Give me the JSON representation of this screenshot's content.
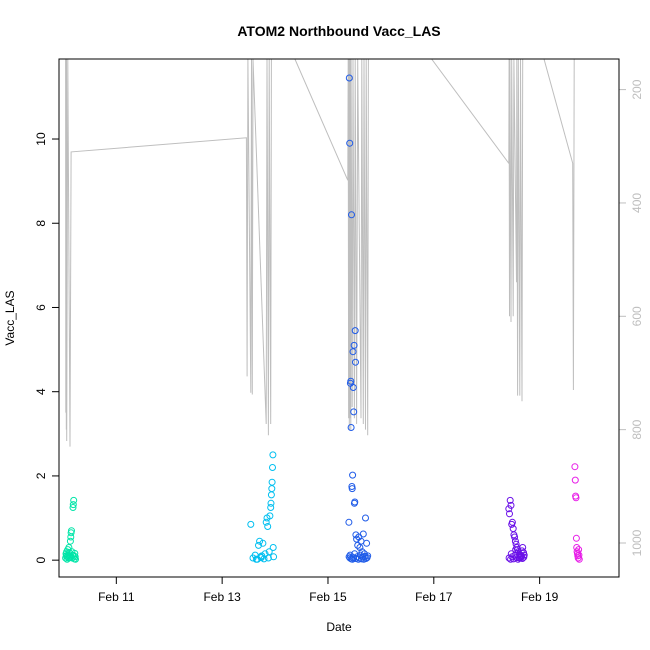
{
  "chart_data": {
    "type": "scatter",
    "title": "ATOM2 Northbound Vacc_LAS",
    "xlabel": "Date",
    "ylabel": "Vacc_LAS",
    "x_axis": {
      "type": "date",
      "range": [
        "2024-02-09T22:00",
        "2024-02-20T12:00"
      ],
      "ticks": [
        {
          "value": "2024-02-11T00:00",
          "label": "Feb 11"
        },
        {
          "value": "2024-02-13T00:00",
          "label": "Feb 13"
        },
        {
          "value": "2024-02-15T00:00",
          "label": "Feb 15"
        },
        {
          "value": "2024-02-17T00:00",
          "label": "Feb 17"
        },
        {
          "value": "2024-02-19T00:00",
          "label": "Feb 19"
        }
      ]
    },
    "y_axis": {
      "range": [
        -0.4,
        11.9
      ],
      "ticks": [
        0,
        2,
        4,
        6,
        8,
        10
      ]
    },
    "y2_axis": {
      "label": "",
      "reversed": true,
      "range": [
        1060,
        146
      ],
      "ticks": [
        200,
        400,
        600,
        800,
        1000
      ],
      "color": "#bebebe"
    },
    "grid": false,
    "legend": "none",
    "series": [
      {
        "color": "#00e5a8",
        "points": [
          [
            "2024-02-10T01:00",
            0.05
          ],
          [
            "2024-02-10T01:10",
            0.15
          ],
          [
            "2024-02-10T01:20",
            0.1
          ],
          [
            "2024-02-10T01:30",
            0.2
          ],
          [
            "2024-02-10T01:40",
            0.02
          ],
          [
            "2024-02-10T01:50",
            0.08
          ],
          [
            "2024-02-10T02:00",
            0.25
          ],
          [
            "2024-02-10T02:10",
            0.12
          ],
          [
            "2024-02-10T02:20",
            0.05
          ],
          [
            "2024-02-10T02:30",
            0.3
          ],
          [
            "2024-02-10T02:40",
            0.18
          ],
          [
            "2024-02-10T02:50",
            0.06
          ],
          [
            "2024-02-10T03:00",
            0.1
          ],
          [
            "2024-02-10T03:10",
            0.45
          ],
          [
            "2024-02-10T03:20",
            0.55
          ],
          [
            "2024-02-10T03:30",
            0.65
          ],
          [
            "2024-02-10T03:40",
            0.7
          ],
          [
            "2024-02-10T03:50",
            0.2
          ],
          [
            "2024-02-10T04:00",
            0.05
          ],
          [
            "2024-02-10T04:10",
            0.12
          ],
          [
            "2024-02-10T04:20",
            1.25
          ],
          [
            "2024-02-10T04:30",
            1.32
          ],
          [
            "2024-02-10T04:40",
            1.42
          ],
          [
            "2024-02-10T04:50",
            0.1
          ],
          [
            "2024-02-10T05:00",
            0.03
          ],
          [
            "2024-02-10T05:10",
            0.16
          ],
          [
            "2024-02-10T05:20",
            0.08
          ],
          [
            "2024-02-10T05:30",
            0.02
          ]
        ]
      },
      {
        "color": "#00bff0",
        "points": [
          [
            "2024-02-13T13:00",
            0.85
          ],
          [
            "2024-02-13T14:00",
            0.05
          ],
          [
            "2024-02-13T15:00",
            0.12
          ],
          [
            "2024-02-13T16:00",
            0.02
          ],
          [
            "2024-02-13T16:30",
            0.35
          ],
          [
            "2024-02-13T17:00",
            0.45
          ],
          [
            "2024-02-13T17:30",
            0.08
          ],
          [
            "2024-02-13T18:00",
            0.1
          ],
          [
            "2024-02-13T18:30",
            0.4
          ],
          [
            "2024-02-13T19:00",
            0.03
          ],
          [
            "2024-02-13T19:30",
            0.15
          ],
          [
            "2024-02-13T20:00",
            0.9
          ],
          [
            "2024-02-13T20:20",
            1.0
          ],
          [
            "2024-02-13T20:40",
            0.8
          ],
          [
            "2024-02-13T21:00",
            0.05
          ],
          [
            "2024-02-13T21:20",
            0.2
          ],
          [
            "2024-02-13T21:40",
            1.05
          ],
          [
            "2024-02-13T22:00",
            1.25
          ],
          [
            "2024-02-13T22:10",
            1.35
          ],
          [
            "2024-02-13T22:20",
            1.55
          ],
          [
            "2024-02-13T22:30",
            1.7
          ],
          [
            "2024-02-13T22:40",
            1.85
          ],
          [
            "2024-02-13T22:50",
            2.2
          ],
          [
            "2024-02-13T23:00",
            2.5
          ],
          [
            "2024-02-13T23:10",
            0.3
          ],
          [
            "2024-02-13T23:20",
            0.08
          ],
          [
            "2024-02-13T15:30",
            0.02
          ],
          [
            "2024-02-13T17:45",
            0.06
          ]
        ]
      },
      {
        "color": "#1f5be8",
        "points": [
          [
            "2024-02-15T09:30",
            0.9
          ],
          [
            "2024-02-15T09:40",
            11.45
          ],
          [
            "2024-02-15T09:50",
            9.9
          ],
          [
            "2024-02-15T10:00",
            0.05
          ],
          [
            "2024-02-15T10:10",
            4.2
          ],
          [
            "2024-02-15T10:20",
            4.25
          ],
          [
            "2024-02-15T10:30",
            3.15
          ],
          [
            "2024-02-15T10:40",
            8.2
          ],
          [
            "2024-02-15T10:50",
            1.75
          ],
          [
            "2024-02-15T11:00",
            1.7
          ],
          [
            "2024-02-15T11:10",
            2.02
          ],
          [
            "2024-02-15T11:20",
            4.95
          ],
          [
            "2024-02-15T11:30",
            4.1
          ],
          [
            "2024-02-15T11:40",
            3.52
          ],
          [
            "2024-02-15T11:50",
            5.1
          ],
          [
            "2024-02-15T12:00",
            1.35
          ],
          [
            "2024-02-15T12:10",
            1.38
          ],
          [
            "2024-02-15T12:20",
            5.45
          ],
          [
            "2024-02-15T12:30",
            4.7
          ],
          [
            "2024-02-15T12:40",
            0.6
          ],
          [
            "2024-02-15T13:00",
            0.5
          ],
          [
            "2024-02-15T13:30",
            0.35
          ],
          [
            "2024-02-15T14:00",
            0.55
          ],
          [
            "2024-02-15T14:30",
            0.3
          ],
          [
            "2024-02-15T15:00",
            0.45
          ],
          [
            "2024-02-15T15:30",
            0.2
          ],
          [
            "2024-02-15T16:00",
            0.62
          ],
          [
            "2024-02-15T16:30",
            0.15
          ],
          [
            "2024-02-15T17:00",
            1.0
          ],
          [
            "2024-02-15T17:30",
            0.4
          ],
          [
            "2024-02-15T18:00",
            0.1
          ],
          [
            "2024-02-15T09:35",
            0.08
          ],
          [
            "2024-02-15T10:05",
            0.12
          ],
          [
            "2024-02-15T10:35",
            0.03
          ],
          [
            "2024-02-15T11:05",
            0.02
          ],
          [
            "2024-02-15T11:35",
            0.06
          ],
          [
            "2024-02-15T12:05",
            0.15
          ],
          [
            "2024-02-15T12:35",
            0.04
          ],
          [
            "2024-02-15T13:15",
            0.08
          ],
          [
            "2024-02-15T13:45",
            0.02
          ],
          [
            "2024-02-15T14:15",
            0.05
          ],
          [
            "2024-02-15T14:45",
            0.12
          ],
          [
            "2024-02-15T15:15",
            0.03
          ],
          [
            "2024-02-15T15:45",
            0.07
          ],
          [
            "2024-02-15T16:15",
            0.02
          ],
          [
            "2024-02-15T16:45",
            0.09
          ],
          [
            "2024-02-15T17:15",
            0.04
          ],
          [
            "2024-02-15T17:45",
            0.06
          ]
        ]
      },
      {
        "color": "#6a10e8",
        "points": [
          [
            "2024-02-18T10:00",
            1.22
          ],
          [
            "2024-02-18T10:20",
            1.1
          ],
          [
            "2024-02-18T10:40",
            1.42
          ],
          [
            "2024-02-18T11:00",
            1.3
          ],
          [
            "2024-02-18T11:20",
            0.85
          ],
          [
            "2024-02-18T11:40",
            0.9
          ],
          [
            "2024-02-18T12:00",
            0.75
          ],
          [
            "2024-02-18T12:20",
            0.6
          ],
          [
            "2024-02-18T12:40",
            0.55
          ],
          [
            "2024-02-18T13:00",
            0.45
          ],
          [
            "2024-02-18T13:20",
            0.38
          ],
          [
            "2024-02-18T13:40",
            0.3
          ],
          [
            "2024-02-18T14:00",
            0.25
          ],
          [
            "2024-02-18T14:20",
            0.2
          ],
          [
            "2024-02-18T14:40",
            0.15
          ],
          [
            "2024-02-18T15:00",
            0.1
          ],
          [
            "2024-02-18T15:20",
            0.05
          ],
          [
            "2024-02-18T15:40",
            0.08
          ],
          [
            "2024-02-18T16:00",
            0.22
          ],
          [
            "2024-02-18T16:20",
            0.3
          ],
          [
            "2024-02-18T16:40",
            0.18
          ],
          [
            "2024-02-18T17:00",
            0.12
          ],
          [
            "2024-02-18T10:10",
            0.05
          ],
          [
            "2024-02-18T10:50",
            0.02
          ],
          [
            "2024-02-18T11:30",
            0.08
          ],
          [
            "2024-02-18T12:10",
            0.03
          ],
          [
            "2024-02-18T12:50",
            0.12
          ],
          [
            "2024-02-18T13:30",
            0.06
          ],
          [
            "2024-02-18T14:10",
            0.02
          ],
          [
            "2024-02-18T14:50",
            0.05
          ],
          [
            "2024-02-18T15:30",
            0.1
          ],
          [
            "2024-02-18T16:10",
            0.04
          ],
          [
            "2024-02-18T16:50",
            0.07
          ],
          [
            "2024-02-18T11:10",
            0.15
          ],
          [
            "2024-02-18T13:10",
            0.25
          ]
        ]
      },
      {
        "color": "#e81ee8",
        "points": [
          [
            "2024-02-19T16:00",
            2.22
          ],
          [
            "2024-02-19T16:10",
            1.9
          ],
          [
            "2024-02-19T16:20",
            1.52
          ],
          [
            "2024-02-19T16:30",
            1.48
          ],
          [
            "2024-02-19T16:40",
            0.52
          ],
          [
            "2024-02-19T16:50",
            0.3
          ],
          [
            "2024-02-19T17:00",
            0.2
          ],
          [
            "2024-02-19T17:10",
            0.15
          ],
          [
            "2024-02-19T17:20",
            0.1
          ],
          [
            "2024-02-19T17:30",
            0.05
          ],
          [
            "2024-02-19T17:40",
            0.25
          ],
          [
            "2024-02-19T17:50",
            0.12
          ],
          [
            "2024-02-19T18:00",
            0.02
          ]
        ]
      }
    ],
    "line2": {
      "color": "#bebebe",
      "y_axis": "y2",
      "points": [
        [
          "2024-02-10T01:00",
          146
        ],
        [
          "2024-02-10T01:06",
          770
        ],
        [
          "2024-02-10T01:12",
          146
        ],
        [
          "2024-02-10T01:18",
          800
        ],
        [
          "2024-02-10T01:24",
          146
        ],
        [
          "2024-02-10T01:30",
          820
        ],
        [
          "2024-02-10T02:00",
          146
        ],
        [
          "2024-02-10T03:00",
          830
        ],
        [
          "2024-02-10T03:30",
          310
        ],
        [
          "2024-02-13T11:00",
          285
        ],
        [
          "2024-02-13T11:20",
          706
        ],
        [
          "2024-02-13T11:40",
          146
        ],
        [
          "2024-02-13T13:00",
          735
        ],
        [
          "2024-02-13T13:20",
          146
        ],
        [
          "2024-02-13T13:40",
          738
        ],
        [
          "2024-02-13T14:00",
          146
        ],
        [
          "2024-02-13T20:00",
          790
        ],
        [
          "2024-02-13T20:20",
          146
        ],
        [
          "2024-02-13T21:00",
          810
        ],
        [
          "2024-02-13T21:20",
          146
        ],
        [
          "2024-02-13T22:00",
          790
        ],
        [
          "2024-02-13T22:20",
          146
        ],
        [
          "2024-02-14T09:00",
          146
        ],
        [
          "2024-02-15T09:00",
          360
        ],
        [
          "2024-02-15T09:10",
          146
        ],
        [
          "2024-02-15T09:20",
          780
        ],
        [
          "2024-02-15T09:30",
          146
        ],
        [
          "2024-02-15T09:40",
          800
        ],
        [
          "2024-02-15T09:50",
          146
        ],
        [
          "2024-02-15T10:00",
          780
        ],
        [
          "2024-02-15T10:10",
          146
        ],
        [
          "2024-02-15T10:20",
          800
        ],
        [
          "2024-02-15T10:30",
          146
        ],
        [
          "2024-02-15T11:00",
          760
        ],
        [
          "2024-02-15T11:20",
          146
        ],
        [
          "2024-02-15T12:00",
          780
        ],
        [
          "2024-02-15T12:20",
          146
        ],
        [
          "2024-02-15T13:00",
          790
        ],
        [
          "2024-02-15T13:30",
          146
        ],
        [
          "2024-02-15T15:00",
          780
        ],
        [
          "2024-02-15T15:20",
          146
        ],
        [
          "2024-02-15T16:00",
          790
        ],
        [
          "2024-02-15T16:20",
          146
        ],
        [
          "2024-02-15T17:00",
          800
        ],
        [
          "2024-02-15T17:20",
          146
        ],
        [
          "2024-02-15T18:00",
          810
        ],
        [
          "2024-02-15T18:20",
          146
        ],
        [
          "2024-02-16T23:00",
          146
        ],
        [
          "2024-02-18T10:00",
          330
        ],
        [
          "2024-02-18T10:10",
          146
        ],
        [
          "2024-02-18T10:20",
          600
        ],
        [
          "2024-02-18T10:30",
          146
        ],
        [
          "2024-02-18T11:00",
          610
        ],
        [
          "2024-02-18T11:20",
          146
        ],
        [
          "2024-02-18T12:00",
          600
        ],
        [
          "2024-02-18T12:20",
          146
        ],
        [
          "2024-02-18T13:30",
          540
        ],
        [
          "2024-02-18T13:40",
          146
        ],
        [
          "2024-02-18T14:00",
          740
        ],
        [
          "2024-02-18T14:20",
          146
        ],
        [
          "2024-02-18T15:00",
          740
        ],
        [
          "2024-02-18T15:20",
          146
        ],
        [
          "2024-02-18T16:00",
          750
        ],
        [
          "2024-02-18T16:20",
          146
        ],
        [
          "2024-02-18T16:40",
          146
        ],
        [
          "2024-02-19T02:00",
          146
        ],
        [
          "2024-02-19T15:00",
          330
        ],
        [
          "2024-02-19T15:20",
          730
        ],
        [
          "2024-02-19T15:40",
          146
        ]
      ]
    }
  }
}
